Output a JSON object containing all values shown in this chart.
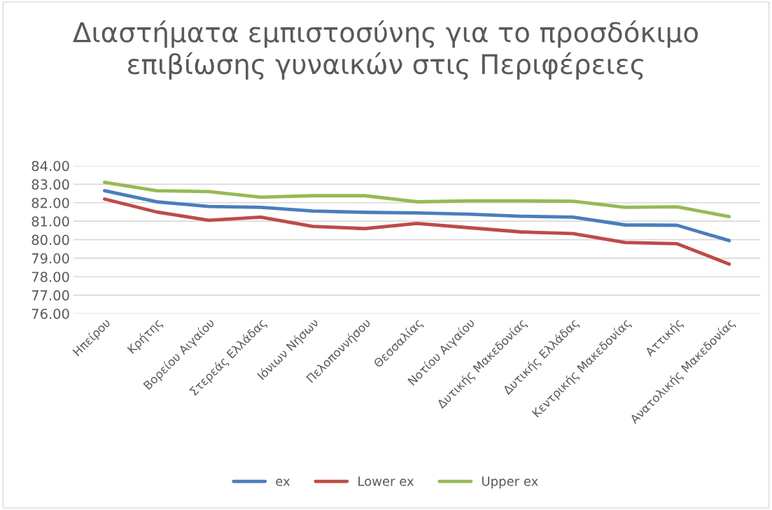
{
  "chart_data": {
    "type": "line",
    "title": "Διαστήματα εμπιστοσύνης για το προσδόκιμο επιβίωσης γυναικών στις Περιφέρειες",
    "categories": [
      "Ηπείρου",
      "Κρήτης",
      "Βορείου Αιγαίου",
      "Στερεάς Ελλάδας",
      "Ιόνιων Νήσων",
      "Πελοποννήσου",
      "Θεσσαλίας",
      "Νοτίου Αιγαίου",
      "Δυτικής Μακεδονίας",
      "Δυτικής Ελλάδας",
      "Κεντρικής Μακεδονίας",
      "Αττικής",
      "Ανατολικής Μακεδονίας"
    ],
    "series": [
      {
        "name": "ex",
        "color": "#4a7ebb",
        "values": [
          82.65,
          82.05,
          81.8,
          81.75,
          81.55,
          81.48,
          81.45,
          81.38,
          81.27,
          81.22,
          80.8,
          80.78,
          79.95
        ]
      },
      {
        "name": "Lower ex",
        "color": "#be4b48",
        "values": [
          82.2,
          81.5,
          81.05,
          81.22,
          80.72,
          80.6,
          80.88,
          80.65,
          80.42,
          80.33,
          79.85,
          79.78,
          78.68
        ]
      },
      {
        "name": "Upper ex",
        "color": "#98b954",
        "values": [
          83.1,
          82.65,
          82.6,
          82.3,
          82.38,
          82.38,
          82.05,
          82.1,
          82.1,
          82.08,
          81.75,
          81.78,
          81.25
        ]
      }
    ],
    "ylim": [
      76,
      84
    ],
    "yticks": [
      {
        "value": 76,
        "label": "76.00"
      },
      {
        "value": 77,
        "label": "77.00"
      },
      {
        "value": 78,
        "label": "78.00"
      },
      {
        "value": 79,
        "label": "79.00"
      },
      {
        "value": 80,
        "label": "80.00"
      },
      {
        "value": 81,
        "label": "81.00"
      },
      {
        "value": 82,
        "label": "82.00"
      },
      {
        "value": 83,
        "label": "83.00"
      },
      {
        "value": 84,
        "label": "84.00"
      }
    ],
    "grid": "y",
    "legend": "bottom",
    "marker": "none",
    "line_style": "solid"
  }
}
